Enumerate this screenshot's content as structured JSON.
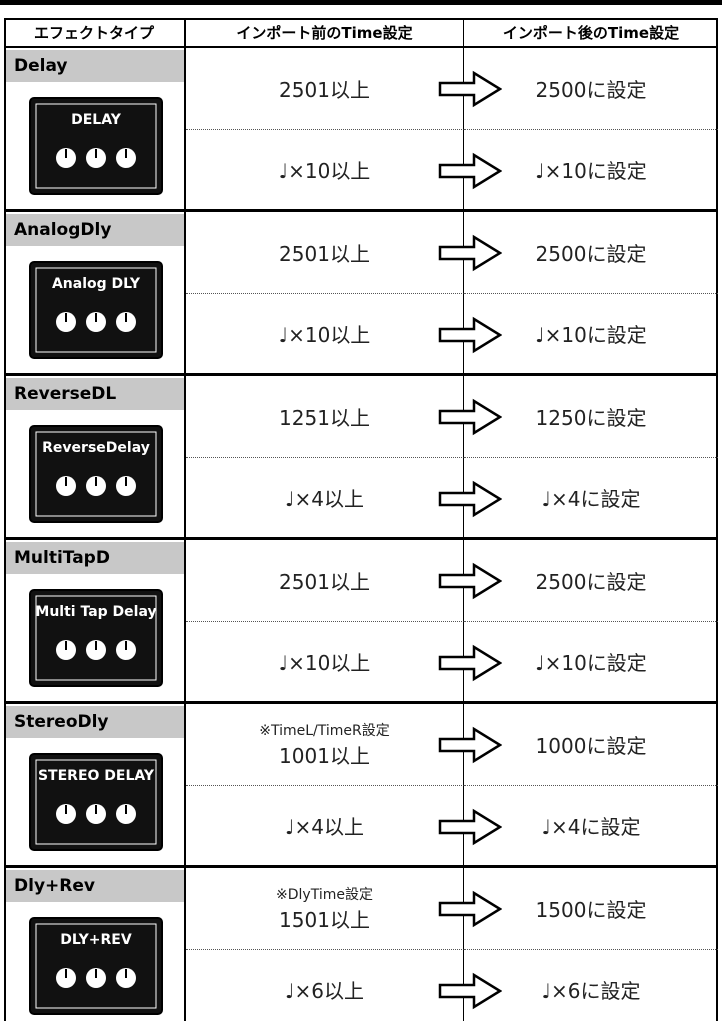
{
  "table": {
    "header": [
      "エフェクトタイプ",
      "インポート前のTime設定",
      "インポート後のTime設定"
    ],
    "rows": [
      {
        "effect": "Delay",
        "pedal": "DELAY",
        "settings": [
          {
            "before": "2501以上",
            "after": "2500に設定"
          },
          {
            "before": "♩×10以上",
            "after": "♩×10に設定"
          }
        ]
      },
      {
        "effect": "AnalogDly",
        "pedal": "Analog DLY",
        "settings": [
          {
            "before": "2501以上",
            "after": "2500に設定"
          },
          {
            "before": "♩×10以上",
            "after": "♩×10に設定"
          }
        ]
      },
      {
        "effect": "ReverseDL",
        "pedal": "ReverseDelay",
        "settings": [
          {
            "before": "1251以上",
            "after": "1250に設定"
          },
          {
            "before": "♩×4以上",
            "after": "♩×4に設定"
          }
        ]
      },
      {
        "effect": "MultiTapD",
        "pedal": "Multi Tap Delay",
        "settings": [
          {
            "before": "2501以上",
            "after": "2500に設定"
          },
          {
            "before": "♩×10以上",
            "after": "♩×10に設定"
          }
        ]
      },
      {
        "effect": "StereoDly",
        "pedal": "STEREO DELAY",
        "settings": [
          {
            "note": "※TimeL/TimeR設定",
            "before": "1001以上",
            "after": "1000に設定"
          },
          {
            "before": "♩×4以上",
            "after": "♩×4に設定"
          }
        ]
      },
      {
        "effect": "Dly+Rev",
        "pedal": "DLY+REV",
        "settings": [
          {
            "note": "※DlyTime設定",
            "before": "1501以上",
            "after": "1500に設定"
          },
          {
            "before": "♩×6以上",
            "after": "♩×6に設定"
          }
        ]
      }
    ]
  }
}
